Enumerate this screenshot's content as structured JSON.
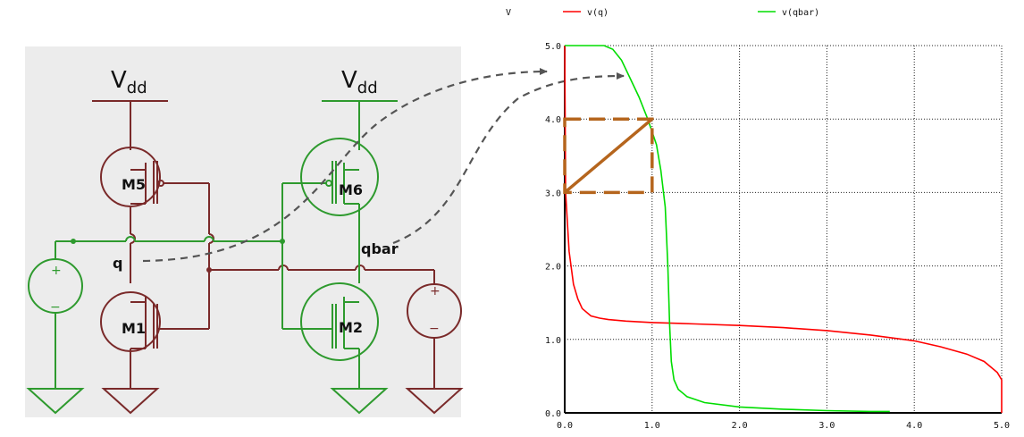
{
  "schematic": {
    "supply_left": "V",
    "supply_left_sub": "dd",
    "supply_right": "V",
    "supply_right_sub": "dd",
    "transistors": [
      "M5",
      "M6",
      "M1",
      "M2"
    ],
    "node_q": "q",
    "node_qbar": "qbar",
    "source_plus": "+",
    "source_minus": "−",
    "colors": {
      "left_branch": "#7a2a2a",
      "right_branch": "#2e9a2e",
      "background": "#ececec",
      "dashed_arrow": "#555555"
    }
  },
  "chart_data": {
    "type": "line",
    "ylabel_unit": "V",
    "legend": [
      {
        "name": "v(q)",
        "color": "#ff0000"
      },
      {
        "name": "v(qbar)",
        "color": "#00dd00"
      }
    ],
    "xlim": [
      0,
      5
    ],
    "ylim": [
      0,
      5
    ],
    "xticks": [
      "0.0",
      "1.0",
      "2.0",
      "3.0",
      "4.0",
      "5.0"
    ],
    "yticks": [
      "0.0",
      "1.0",
      "2.0",
      "3.0",
      "4.0",
      "5.0"
    ],
    "grid": true,
    "series": [
      {
        "name": "v(q)",
        "color": "#ff0000",
        "x": [
          0,
          0.01,
          0.05,
          0.1,
          0.15,
          0.2,
          0.3,
          0.4,
          0.5,
          0.7,
          1.0,
          1.5,
          2.0,
          2.5,
          3.0,
          3.5,
          4.0,
          4.3,
          4.6,
          4.8,
          4.95,
          5.0,
          5.0
        ],
        "y": [
          5.0,
          3.0,
          2.2,
          1.75,
          1.55,
          1.42,
          1.32,
          1.29,
          1.27,
          1.25,
          1.23,
          1.21,
          1.19,
          1.16,
          1.12,
          1.06,
          0.98,
          0.9,
          0.8,
          0.7,
          0.55,
          0.45,
          0.0
        ]
      },
      {
        "name": "v(qbar)",
        "color": "#00dd00",
        "x": [
          0,
          0.2,
          0.45,
          0.55,
          0.65,
          0.75,
          0.85,
          0.95,
          1.05,
          1.1,
          1.15,
          1.18,
          1.2,
          1.22,
          1.25,
          1.3,
          1.4,
          1.6,
          2.0,
          2.5,
          3.0,
          3.5,
          3.72
        ],
        "y": [
          5.0,
          5.0,
          5.0,
          4.95,
          4.8,
          4.55,
          4.3,
          4.0,
          3.65,
          3.3,
          2.8,
          2.0,
          1.2,
          0.7,
          0.45,
          0.32,
          0.22,
          0.14,
          0.08,
          0.05,
          0.03,
          0.02,
          0.02
        ]
      }
    ],
    "annotation_square": {
      "x0": 0,
      "x1": 1.0,
      "y0": 3.0,
      "y1": 4.0,
      "color": "#b5651d"
    }
  }
}
